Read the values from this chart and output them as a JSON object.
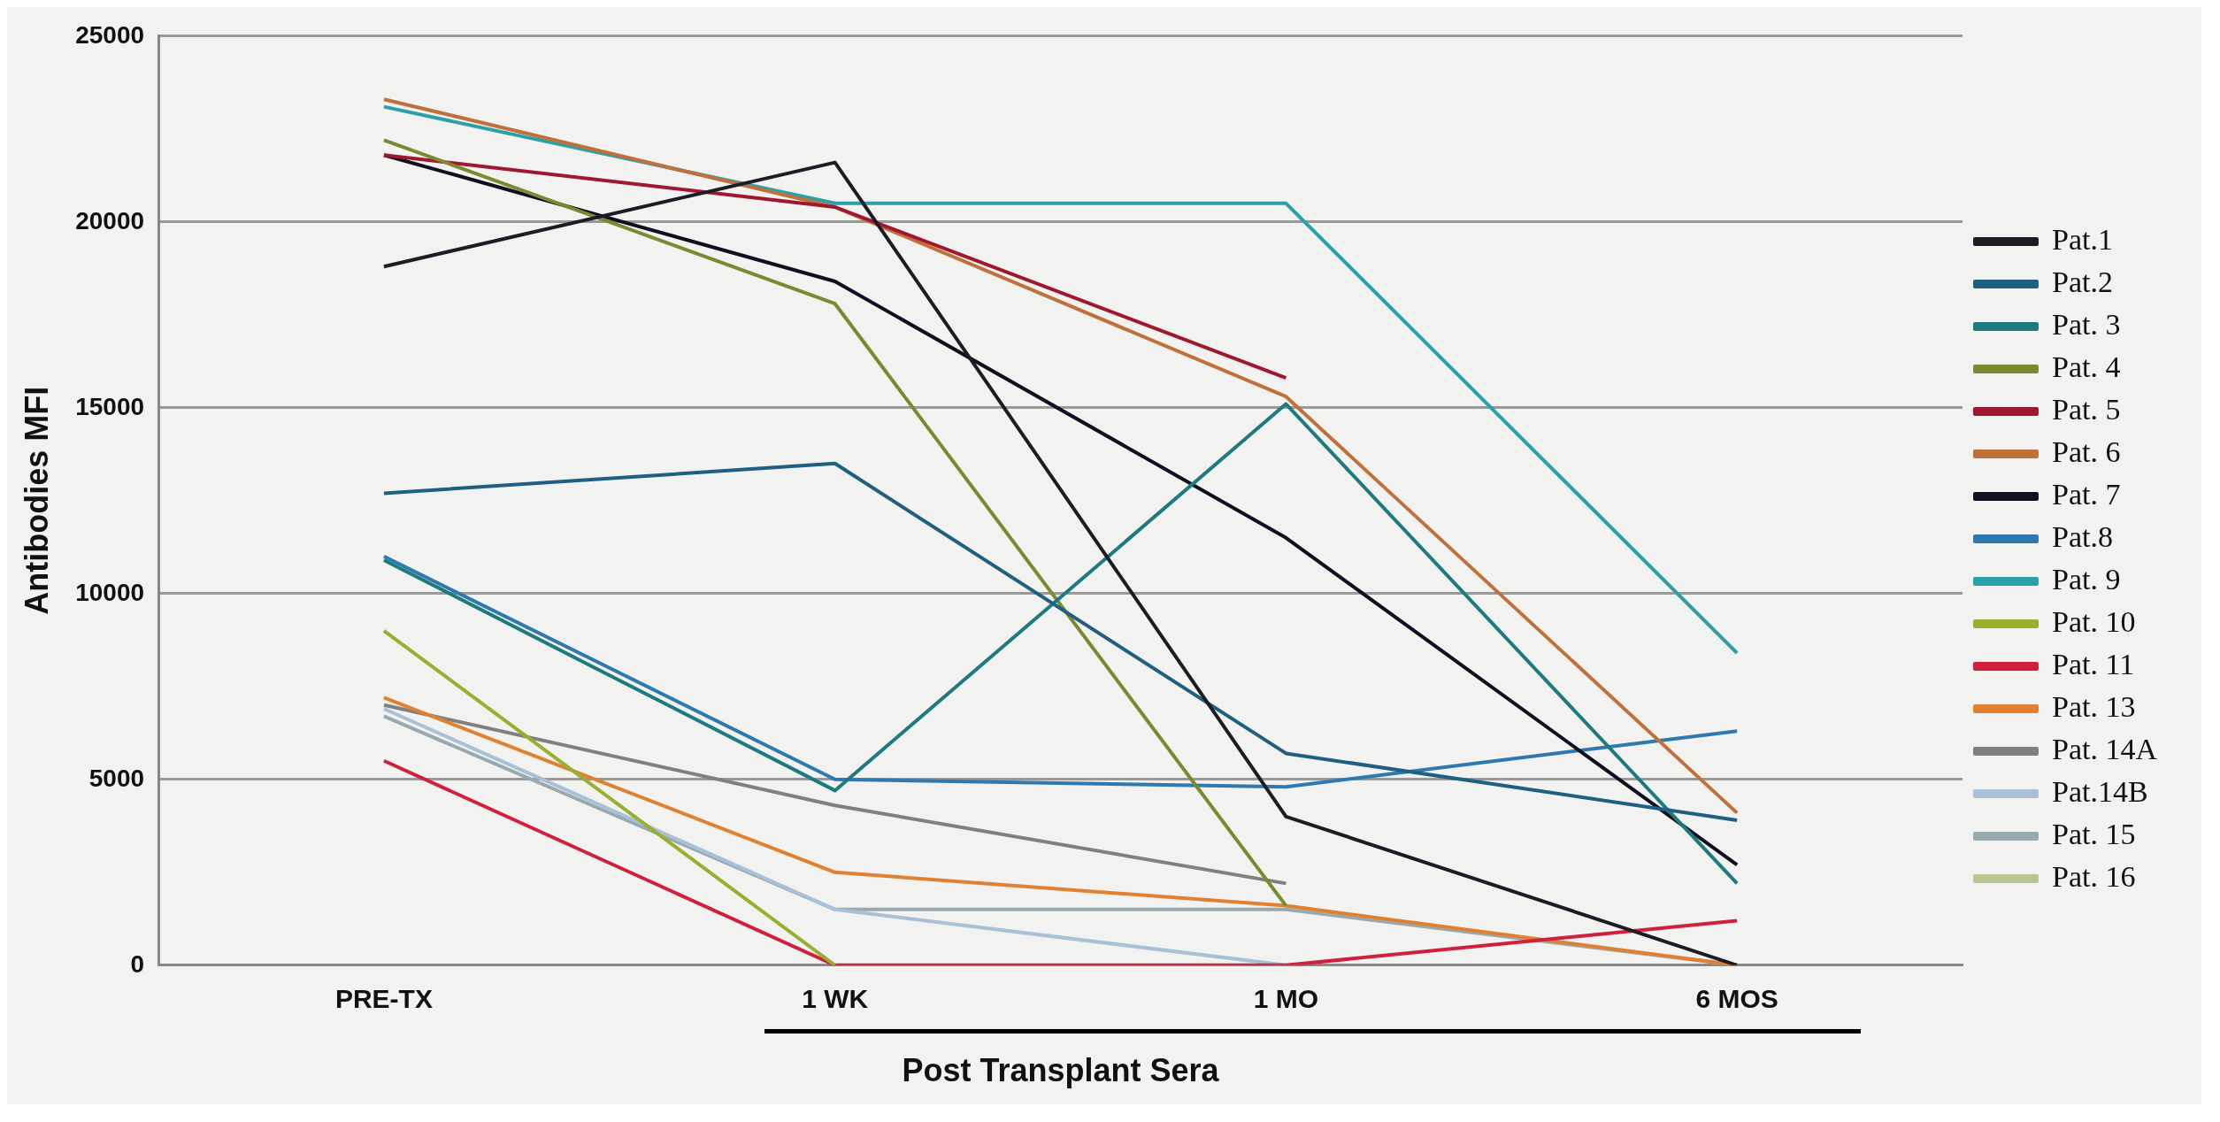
{
  "chart_data": {
    "type": "line",
    "xlabel": "Post Transplant Sera",
    "ylabel": "Antibodies MFI",
    "categories": [
      "PRE-TX",
      "1 WK",
      "1 MO",
      "6 MOS"
    ],
    "ylim": [
      0,
      25000
    ],
    "yticks": [
      0,
      5000,
      10000,
      15000,
      20000,
      25000
    ],
    "grid": "y",
    "legend": "right",
    "marker": "none",
    "line_style": "solid",
    "series": [
      {
        "name": "Pat.1",
        "color": "#1c1c24",
        "values": [
          18800,
          21600,
          4000,
          0
        ]
      },
      {
        "name": "Pat.2",
        "color": "#1f5f80",
        "values": [
          12700,
          13500,
          5700,
          3900
        ]
      },
      {
        "name": "Pat. 3",
        "color": "#1d7a7e",
        "values": [
          10900,
          4700,
          15100,
          2200
        ]
      },
      {
        "name": "Pat. 4",
        "color": "#7a8a30",
        "values": [
          22200,
          17800,
          1600,
          null
        ]
      },
      {
        "name": "Pat. 5",
        "color": "#a01830",
        "values": [
          21800,
          20400,
          15800,
          null
        ]
      },
      {
        "name": "Pat. 6",
        "color": "#c0703a",
        "values": [
          23300,
          20400,
          15300,
          4100
        ]
      },
      {
        "name": "Pat. 7",
        "color": "#0e1020",
        "values": [
          21800,
          18400,
          11500,
          2700
        ]
      },
      {
        "name": "Pat.8",
        "color": "#2e7ab0",
        "values": [
          11000,
          5000,
          4800,
          6300
        ]
      },
      {
        "name": "Pat. 9",
        "color": "#2aa0a8",
        "values": [
          23100,
          20500,
          20500,
          8400
        ]
      },
      {
        "name": "Pat. 10",
        "color": "#98b030",
        "values": [
          9000,
          0,
          null,
          null
        ]
      },
      {
        "name": "Pat. 11",
        "color": "#d0203e",
        "values": [
          5500,
          0,
          0,
          1200
        ]
      },
      {
        "name": "Pat. 13",
        "color": "#e08030",
        "values": [
          7200,
          2500,
          1600,
          0
        ]
      },
      {
        "name": "Pat. 14A",
        "color": "#808080",
        "values": [
          7000,
          4300,
          2200,
          null
        ]
      },
      {
        "name": "Pat.14B",
        "color": "#a8c0d8",
        "values": [
          6900,
          1500,
          0,
          null
        ]
      },
      {
        "name": "Pat. 15",
        "color": "#98aab0",
        "values": [
          6700,
          1500,
          1500,
          0
        ]
      },
      {
        "name": "Pat. 16",
        "color": "#b8c890",
        "values": [
          null,
          null,
          null,
          null
        ]
      }
    ]
  }
}
